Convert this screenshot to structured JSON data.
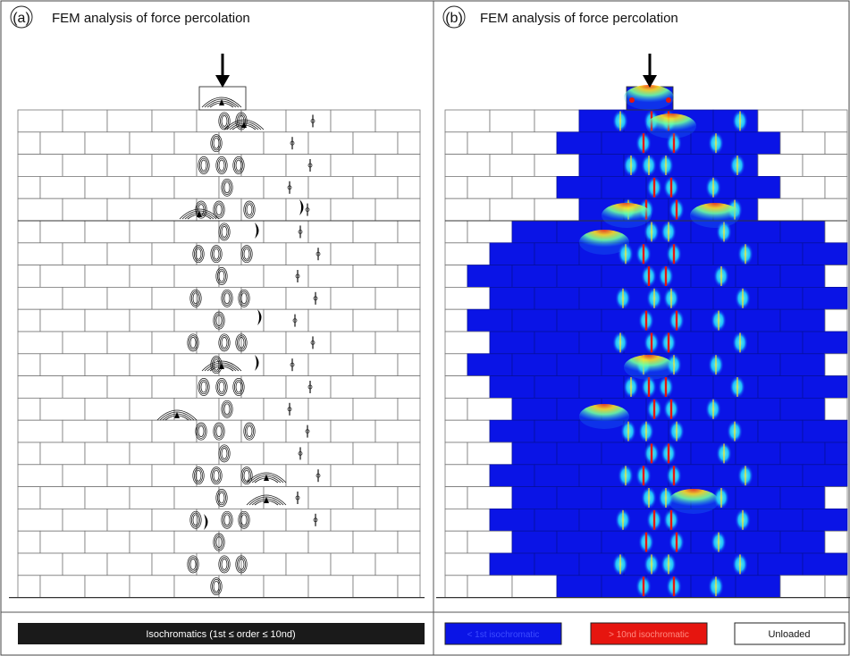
{
  "panels": [
    {
      "letter": "(a)",
      "title": "FEM analysis of force percolation"
    },
    {
      "letter": "(b)",
      "title": "FEM analysis of force percolation"
    }
  ],
  "legend": {
    "a": {
      "text": "Isochromatics (1st ≤ order ≤ 10nd)",
      "color": "#1a1a1a"
    },
    "b": [
      {
        "text": "< 1st isochromatic",
        "color": "#0a14e6"
      },
      {
        "text": "> 10nd isochromatic",
        "color": "#e6150f"
      },
      {
        "text": "Unloaded",
        "color": "#ffffff"
      }
    ]
  },
  "colors": {
    "loaded_brick": "#0a14e6",
    "stress_high": "#e6150f",
    "stress_mid": "#22d3ff",
    "stress_warm": "#ffd81a"
  }
}
